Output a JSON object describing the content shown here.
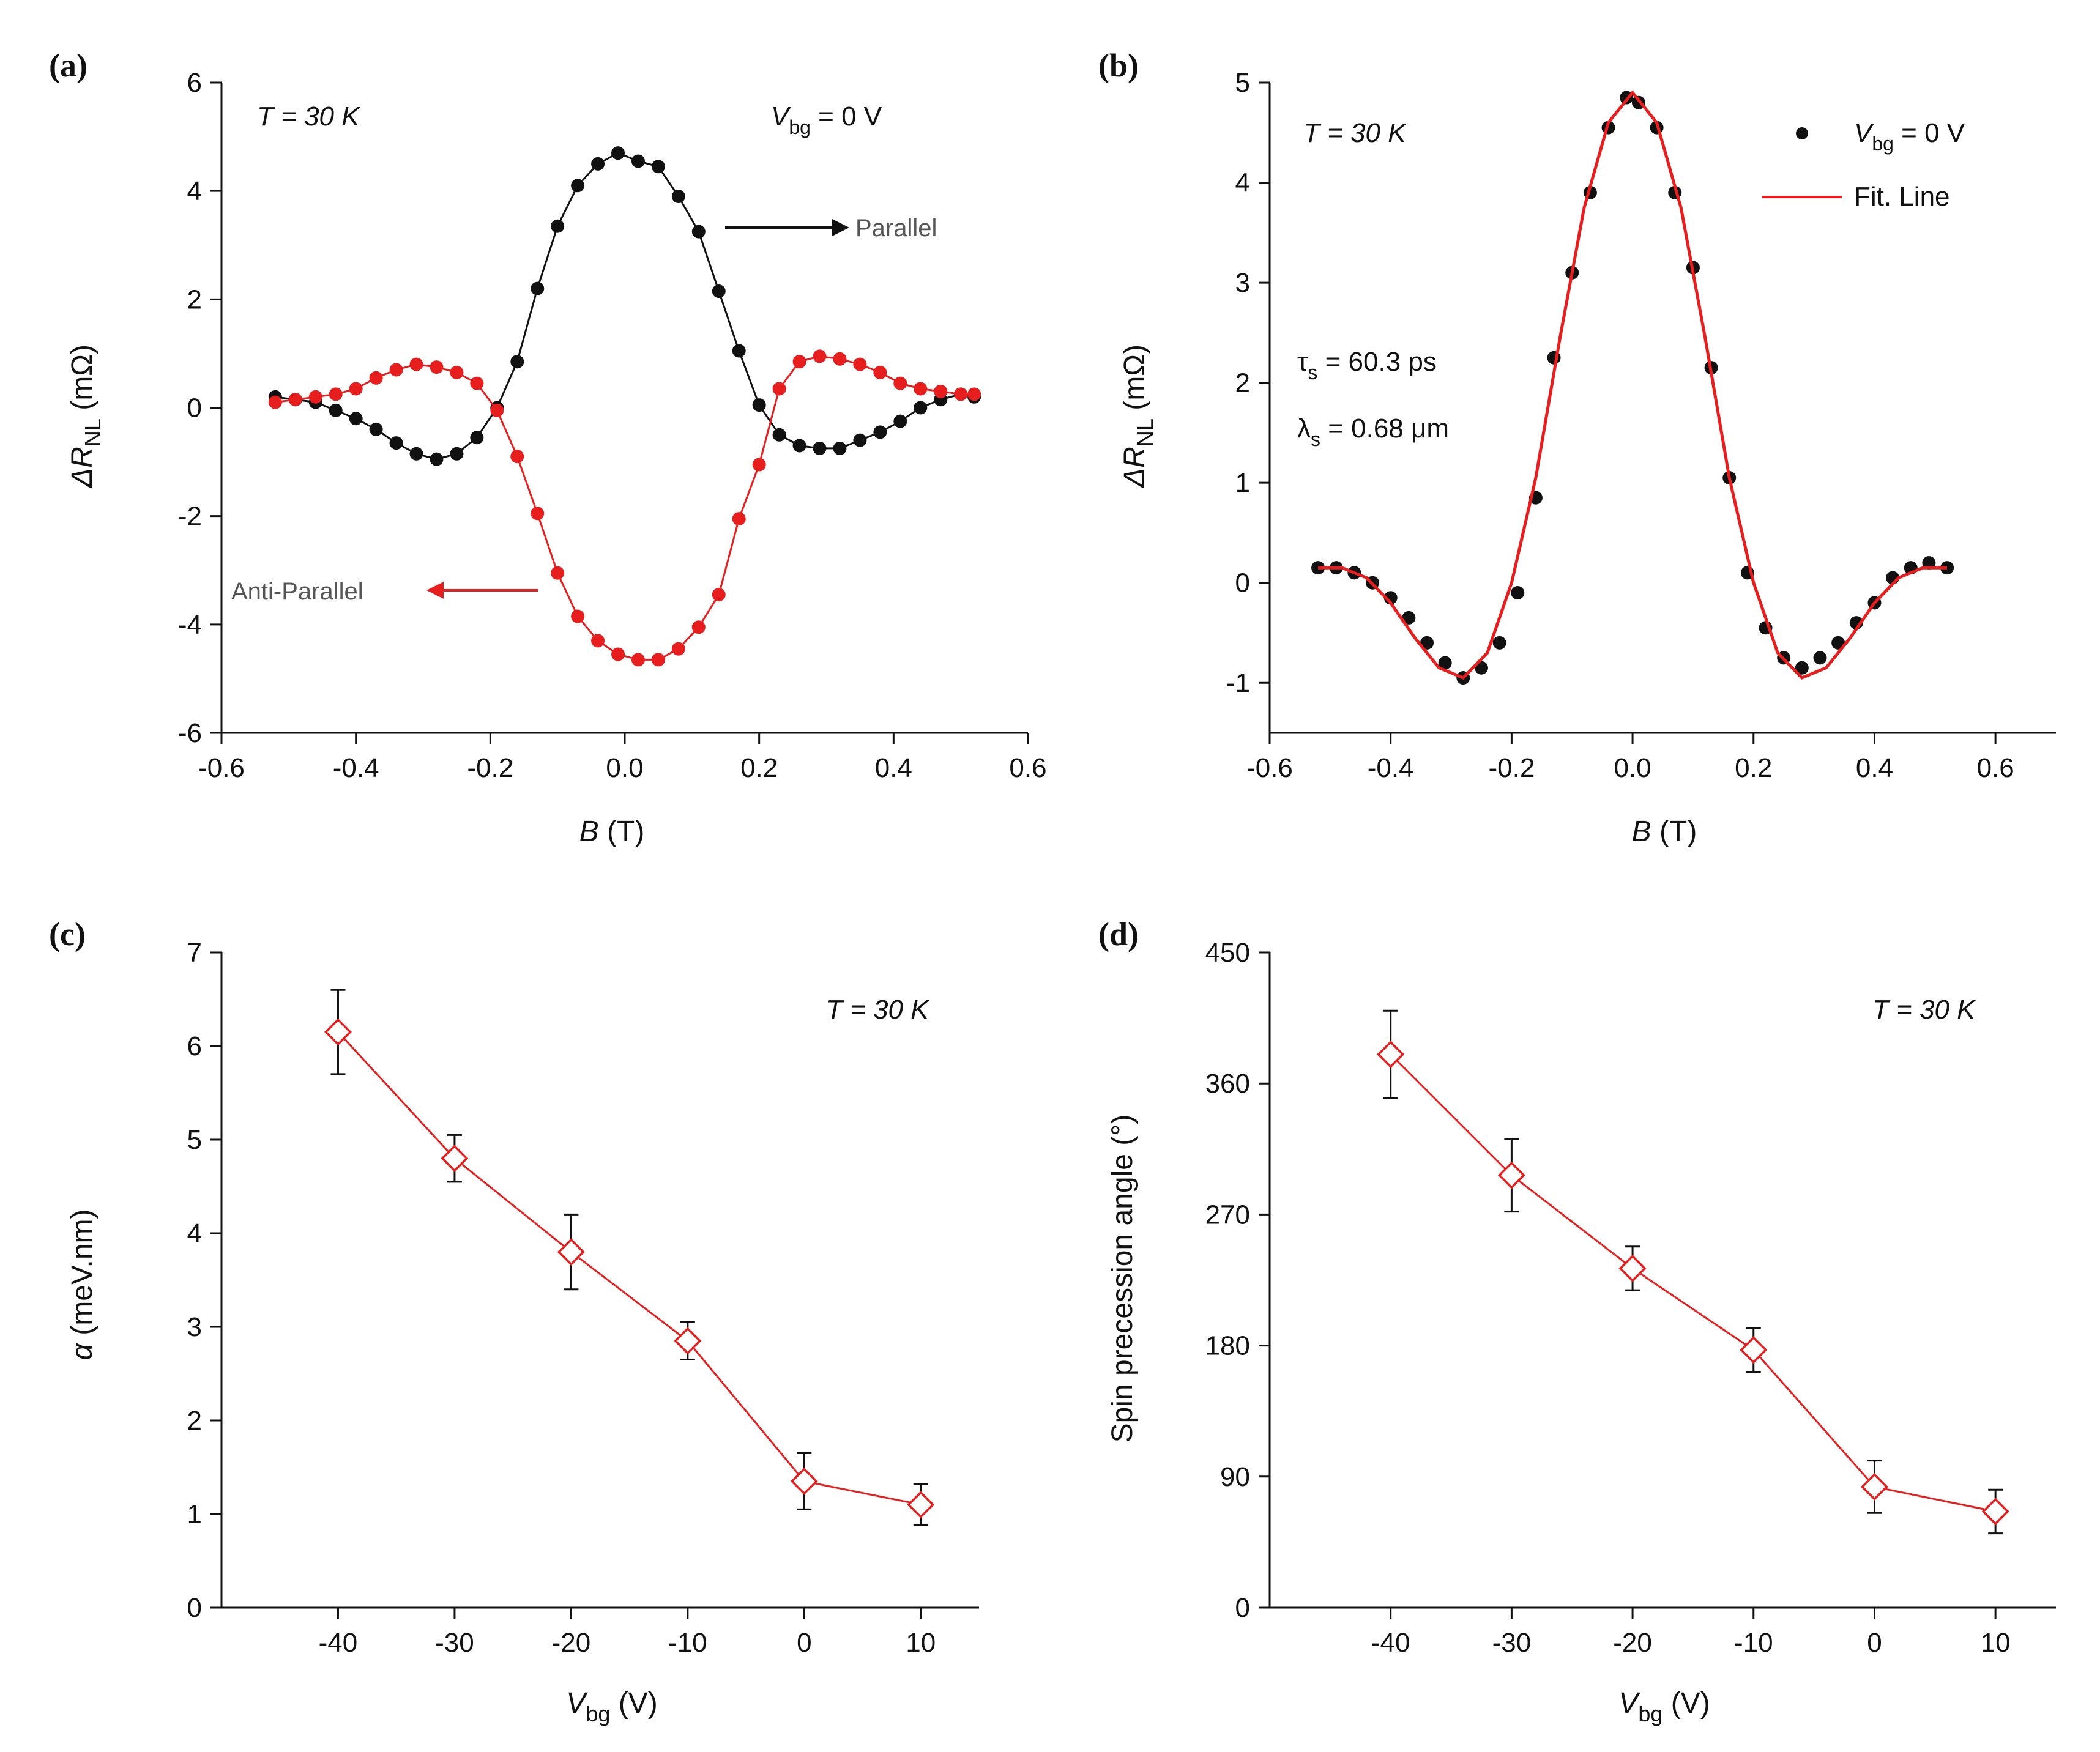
{
  "colors": {
    "black": "#111111",
    "red": "#e61e1e"
  },
  "panels": [
    {
      "label": "(a)",
      "xlabel": "B",
      "xunit": " (T)",
      "ylabel": "ΔR",
      "ysub": "NL",
      "yunit": " (mΩ)",
      "annot_temp": "T = 30 K",
      "annot_vbg": "V",
      "annot_vbg_sub": "bg",
      "annot_vbg_val": " = 0 V",
      "parallel_label": "Parallel",
      "antiparallel_label": "Anti-Parallel"
    },
    {
      "label": "(b)",
      "xlabel": "B",
      "xunit": " (T)",
      "ylabel": "ΔR",
      "ysub": "NL",
      "yunit": " (mΩ)",
      "annot_temp": "T = 30 K",
      "legend_data": "V",
      "legend_data_sub": "bg",
      "legend_data_val": " = 0 V",
      "legend_fit": "Fit. Line",
      "tau_sym": "τ",
      "tau_sub": "s",
      "tau_val": " = 60.3 ps",
      "lambda_sym": "λ",
      "lambda_sub": "s",
      "lambda_val": " = 0.68 μm"
    },
    {
      "label": "(c)",
      "xlabel": "V",
      "xsub": "bg",
      "xunit": " (V)",
      "ylabel": "α",
      "yunit": " (meV.nm)",
      "annot_temp": "T = 30 K"
    },
    {
      "label": "(d)",
      "xlabel": "V",
      "xsub": "bg",
      "xunit": " (V)",
      "ylabel": "Spin precession angle (°)",
      "annot_temp": "T = 30 K"
    }
  ],
  "chart_data": [
    {
      "type": "line",
      "title": "(a)",
      "xlabel": "B (T)",
      "ylabel": "ΔR_NL (mΩ)",
      "xlim": [
        -0.6,
        0.6
      ],
      "ylim": [
        -6,
        6
      ],
      "xticks": [
        -0.6,
        -0.4,
        -0.2,
        0.0,
        0.2,
        0.4,
        0.6
      ],
      "yticks": [
        -6,
        -4,
        -2,
        0,
        2,
        4,
        6
      ],
      "xtick_labels": [
        "-0.6",
        "-0.4",
        "-0.2",
        "0.0",
        "0.2",
        "0.4",
        "0.6"
      ],
      "ytick_labels": [
        "-6",
        "-4",
        "-2",
        "0",
        "2",
        "4",
        "6"
      ],
      "x": [
        -0.52,
        -0.49,
        -0.46,
        -0.43,
        -0.4,
        -0.37,
        -0.34,
        -0.31,
        -0.28,
        -0.25,
        -0.22,
        -0.19,
        -0.16,
        -0.13,
        -0.1,
        -0.07,
        -0.04,
        -0.01,
        0.02,
        0.05,
        0.08,
        0.11,
        0.14,
        0.17,
        0.2,
        0.23,
        0.26,
        0.29,
        0.32,
        0.35,
        0.38,
        0.41,
        0.44,
        0.47,
        0.5,
        0.52
      ],
      "series": [
        {
          "name": "Parallel",
          "color": "#111111",
          "values": [
            0.2,
            0.15,
            0.1,
            -0.05,
            -0.2,
            -0.4,
            -0.65,
            -0.85,
            -0.95,
            -0.85,
            -0.55,
            0.0,
            0.85,
            2.2,
            3.35,
            4.1,
            4.5,
            4.7,
            4.55,
            4.45,
            3.9,
            3.25,
            2.15,
            1.05,
            0.05,
            -0.5,
            -0.7,
            -0.75,
            -0.75,
            -0.6,
            -0.45,
            -0.25,
            0.0,
            0.15,
            0.25,
            0.2
          ]
        },
        {
          "name": "Anti-Parallel",
          "color": "#e61e1e",
          "values": [
            0.1,
            0.15,
            0.2,
            0.25,
            0.35,
            0.55,
            0.7,
            0.8,
            0.75,
            0.65,
            0.45,
            -0.05,
            -0.9,
            -1.95,
            -3.05,
            -3.85,
            -4.3,
            -4.55,
            -4.65,
            -4.65,
            -4.45,
            -4.05,
            -3.45,
            -2.05,
            -1.05,
            0.35,
            0.85,
            0.95,
            0.9,
            0.8,
            0.65,
            0.45,
            0.35,
            0.3,
            0.25,
            0.25
          ]
        }
      ]
    },
    {
      "type": "scatter",
      "title": "(b)",
      "xlabel": "B (T)",
      "ylabel": "ΔR_NL (mΩ)",
      "xlim": [
        -0.6,
        0.7
      ],
      "ylim": [
        -1.5,
        5
      ],
      "xticks": [
        -0.6,
        -0.4,
        -0.2,
        0.0,
        0.2,
        0.4,
        0.6
      ],
      "yticks": [
        -1,
        0,
        1,
        2,
        3,
        4,
        5
      ],
      "xtick_labels": [
        "-0.6",
        "-0.4",
        "-0.2",
        "0.0",
        "0.2",
        "0.4",
        "0.6"
      ],
      "ytick_labels": [
        "-1",
        "0",
        "1",
        "2",
        "3",
        "4",
        "5"
      ],
      "x": [
        -0.52,
        -0.49,
        -0.46,
        -0.43,
        -0.4,
        -0.37,
        -0.34,
        -0.31,
        -0.28,
        -0.25,
        -0.22,
        -0.19,
        -0.16,
        -0.13,
        -0.1,
        -0.07,
        -0.04,
        -0.01,
        0.01,
        0.04,
        0.07,
        0.1,
        0.13,
        0.16,
        0.19,
        0.22,
        0.25,
        0.28,
        0.31,
        0.34,
        0.37,
        0.4,
        0.43,
        0.46,
        0.49,
        0.52
      ],
      "series": [
        {
          "name": "Vbg = 0 V",
          "color": "#111111",
          "values": [
            0.15,
            0.15,
            0.1,
            0.0,
            -0.15,
            -0.35,
            -0.6,
            -0.8,
            -0.95,
            -0.85,
            -0.6,
            -0.1,
            0.85,
            2.25,
            3.1,
            3.9,
            4.55,
            4.85,
            4.8,
            4.55,
            3.9,
            3.15,
            2.15,
            1.05,
            0.1,
            -0.45,
            -0.75,
            -0.85,
            -0.75,
            -0.6,
            -0.4,
            -0.2,
            0.05,
            0.15,
            0.2,
            0.15
          ]
        },
        {
          "name": "Fit. Line",
          "color": "#e61e1e",
          "type": "line",
          "x": [
            -0.52,
            -0.48,
            -0.44,
            -0.4,
            -0.36,
            -0.32,
            -0.28,
            -0.24,
            -0.2,
            -0.16,
            -0.12,
            -0.08,
            -0.04,
            0.0,
            0.04,
            0.08,
            0.12,
            0.16,
            0.2,
            0.24,
            0.28,
            0.32,
            0.36,
            0.4,
            0.44,
            0.48,
            0.52
          ],
          "values": [
            0.15,
            0.15,
            0.05,
            -0.2,
            -0.55,
            -0.85,
            -0.95,
            -0.7,
            0.0,
            1.05,
            2.45,
            3.75,
            4.6,
            4.9,
            4.6,
            3.75,
            2.45,
            1.05,
            0.0,
            -0.7,
            -0.95,
            -0.85,
            -0.55,
            -0.2,
            0.05,
            0.15,
            0.15
          ]
        }
      ],
      "annotations": [
        "τs = 60.3 ps",
        "λs = 0.68 μm"
      ]
    },
    {
      "type": "line",
      "title": "(c)",
      "xlabel": "Vbg (V)",
      "ylabel": "α (meV.nm)",
      "xlim": [
        -50,
        15
      ],
      "ylim": [
        0,
        7
      ],
      "xticks": [
        -40,
        -30,
        -20,
        -10,
        0,
        10
      ],
      "yticks": [
        0,
        1,
        2,
        3,
        4,
        5,
        6,
        7
      ],
      "xtick_labels": [
        "-40",
        "-30",
        "-20",
        "-10",
        "0",
        "10"
      ],
      "ytick_labels": [
        "0",
        "1",
        "2",
        "3",
        "4",
        "5",
        "6",
        "7"
      ],
      "x": [
        -40,
        -30,
        -20,
        -10,
        0,
        10
      ],
      "series": [
        {
          "name": "α",
          "color": "#e61e1e",
          "values": [
            6.15,
            4.8,
            3.8,
            2.85,
            1.35,
            1.1
          ],
          "errors": [
            0.45,
            0.25,
            0.4,
            0.2,
            0.3,
            0.22
          ]
        }
      ]
    },
    {
      "type": "line",
      "title": "(d)",
      "xlabel": "Vbg (V)",
      "ylabel": "Spin precession angle (°)",
      "xlim": [
        -50,
        15
      ],
      "ylim": [
        0,
        450
      ],
      "xticks": [
        -40,
        -30,
        -20,
        -10,
        0,
        10
      ],
      "yticks": [
        0,
        90,
        180,
        270,
        360,
        450
      ],
      "xtick_labels": [
        "-40",
        "-30",
        "-20",
        "-10",
        "0",
        "10"
      ],
      "ytick_labels": [
        "0",
        "90",
        "180",
        "270",
        "360",
        "450"
      ],
      "x": [
        -40,
        -30,
        -20,
        -10,
        0,
        10
      ],
      "series": [
        {
          "name": "Spin precession angle",
          "color": "#e61e1e",
          "values": [
            380,
            297,
            233,
            177,
            83,
            66
          ],
          "errors": [
            30,
            25,
            15,
            15,
            18,
            15
          ]
        }
      ]
    }
  ]
}
